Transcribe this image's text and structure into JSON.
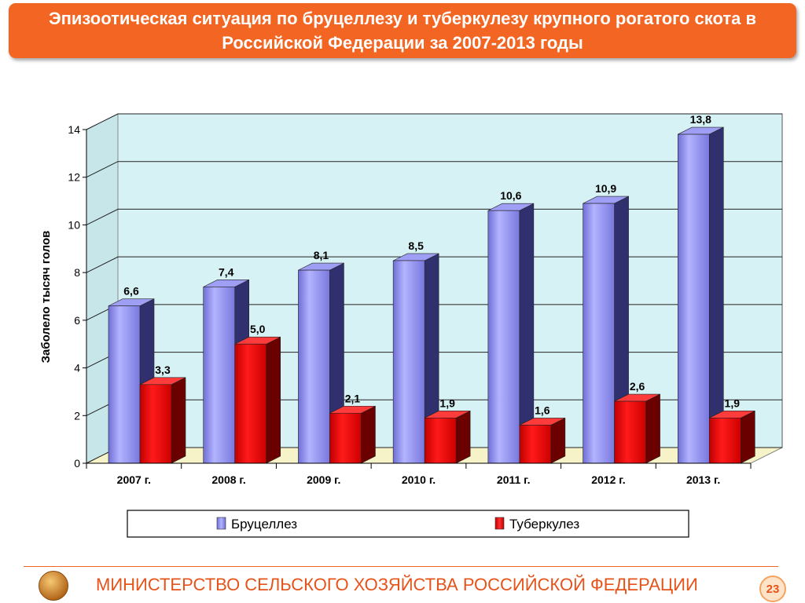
{
  "title": "Эпизоотическая ситуация по бруцеллезу и туберкулезу крупного рогатого скота в Российской Федерации за 2007-2013 годы",
  "footer": {
    "ministry": "МИНИСТЕРСТВО СЕЛЬСКОГО ХОЗЯЙСТВА РОССИЙСКОЙ ФЕДЕРАЦИИ",
    "page_number": "23"
  },
  "colors": {
    "title_bg": "#f26522",
    "brucellosis": "#8f8ff0",
    "tuberculosis": "#e00000",
    "plot_wall": "#d7f2f4",
    "plot_floor": "#f7f3c8"
  },
  "chart_data": {
    "type": "bar",
    "title": "",
    "xlabel": "",
    "ylabel": "Заболело тысяч голов",
    "ylim": [
      0,
      14
    ],
    "yticks": [
      "0",
      "2",
      "4",
      "6",
      "8",
      "10",
      "12",
      "14"
    ],
    "grid": true,
    "legend_position": "bottom",
    "categories": [
      "2007 г.",
      "2008 г.",
      "2009 г.",
      "2010 г.",
      "2011 г.",
      "2012 г.",
      "2013 г."
    ],
    "series": [
      {
        "name": "Бруцеллез",
        "values": [
          6.6,
          7.4,
          8.1,
          8.5,
          10.6,
          10.9,
          13.8
        ],
        "labels": [
          "6,6",
          "7,4",
          "8,1",
          "8,5",
          "10,6",
          "10,9",
          "13,8"
        ]
      },
      {
        "name": "Туберкулез",
        "values": [
          3.3,
          5.0,
          2.1,
          1.9,
          1.6,
          2.6,
          1.9
        ],
        "labels": [
          "3,3",
          "5,0",
          "2,1",
          "1,9",
          "1,6",
          "2,6",
          "1,9"
        ]
      }
    ]
  }
}
